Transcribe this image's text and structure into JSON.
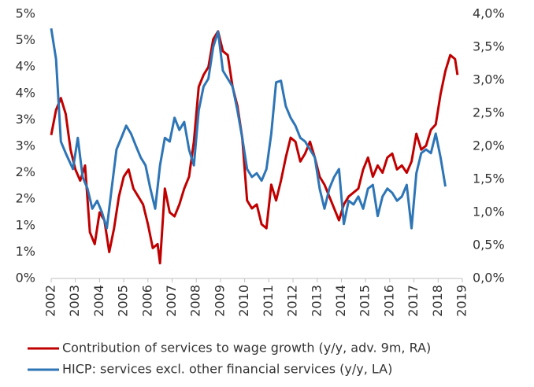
{
  "chart_data": {
    "type": "line",
    "xlim": [
      2002,
      2019
    ],
    "xticks": [
      2002,
      2003,
      2004,
      2005,
      2006,
      2007,
      2008,
      2009,
      2010,
      2011,
      2012,
      2013,
      2014,
      2015,
      2016,
      2017,
      2018,
      2019
    ],
    "ylim": [
      0,
      5
    ],
    "yticks": [
      {
        "value": 0,
        "label": "0%"
      },
      {
        "value": 0.5,
        "label": "1%"
      },
      {
        "value": 1,
        "label": "1%"
      },
      {
        "value": 1.5,
        "label": "2%"
      },
      {
        "value": 2,
        "label": "2%"
      },
      {
        "value": 2.5,
        "label": "3%"
      },
      {
        "value": 3,
        "label": "3%"
      },
      {
        "value": 3.5,
        "label": "4%"
      },
      {
        "value": 4,
        "label": "4%"
      },
      {
        "value": 4.5,
        "label": "5%"
      },
      {
        "value": 5,
        "label": "5%"
      }
    ],
    "y2lim": [
      0,
      4
    ],
    "y2ticks": [
      {
        "value": 0,
        "label": "0,0%"
      },
      {
        "value": 0.5,
        "label": "0,5%"
      },
      {
        "value": 1,
        "label": "1,0%"
      },
      {
        "value": 1.5,
        "label": "1,5%"
      },
      {
        "value": 2,
        "label": "2,0%"
      },
      {
        "value": 2.5,
        "label": "2,5%"
      },
      {
        "value": 3,
        "label": "3,0%"
      },
      {
        "value": 3.5,
        "label": "3,5%"
      },
      {
        "value": 4,
        "label": "4,0%"
      }
    ],
    "series": [
      {
        "name": "Contribution of services to wage growth (y/y, adv. 9m, RA)",
        "color": "#c00000",
        "axis": "y2",
        "x": [
          2002.0,
          2002.2,
          2002.4,
          2002.6,
          2002.8,
          2003.0,
          2003.2,
          2003.4,
          2003.6,
          2003.8,
          2004.0,
          2004.2,
          2004.4,
          2004.6,
          2004.8,
          2005.0,
          2005.2,
          2005.4,
          2005.6,
          2005.8,
          2006.0,
          2006.2,
          2006.4,
          2006.5,
          2006.7,
          2006.9,
          2007.1,
          2007.3,
          2007.5,
          2007.7,
          2007.9,
          2008.1,
          2008.3,
          2008.5,
          2008.7,
          2008.9,
          2009.1,
          2009.3,
          2009.5,
          2009.7,
          2009.9,
          2010.1,
          2010.3,
          2010.5,
          2010.7,
          2010.9,
          2011.1,
          2011.3,
          2011.5,
          2011.7,
          2011.9,
          2012.1,
          2012.3,
          2012.5,
          2012.7,
          2012.9,
          2013.1,
          2013.3,
          2013.5,
          2013.7,
          2013.9,
          2014.1,
          2014.3,
          2014.5,
          2014.7,
          2014.9,
          2015.1,
          2015.3,
          2015.5,
          2015.7,
          2015.9,
          2016.1,
          2016.3,
          2016.5,
          2016.7,
          2016.9,
          2017.1,
          2017.3,
          2017.5,
          2017.7,
          2017.9,
          2018.1,
          2018.3,
          2018.5,
          2018.7,
          2018.8
        ],
        "values": [
          2.17,
          2.55,
          2.73,
          2.49,
          1.95,
          1.65,
          1.48,
          1.71,
          0.7,
          0.52,
          1.0,
          0.88,
          0.4,
          0.76,
          1.24,
          1.54,
          1.65,
          1.36,
          1.24,
          1.12,
          0.82,
          0.46,
          0.52,
          0.23,
          1.36,
          1.0,
          0.94,
          1.12,
          1.36,
          1.54,
          2.07,
          2.9,
          3.08,
          3.2,
          3.62,
          3.74,
          3.44,
          3.38,
          2.9,
          2.61,
          2.13,
          1.18,
          1.06,
          1.12,
          0.82,
          0.76,
          1.42,
          1.18,
          1.48,
          1.83,
          2.13,
          2.07,
          1.77,
          1.89,
          2.07,
          1.83,
          1.54,
          1.42,
          1.24,
          1.06,
          0.88,
          1.12,
          1.24,
          1.3,
          1.36,
          1.65,
          1.83,
          1.54,
          1.71,
          1.6,
          1.83,
          1.89,
          1.65,
          1.71,
          1.6,
          1.77,
          2.19,
          1.95,
          2.01,
          2.25,
          2.33,
          2.79,
          3.14,
          3.38,
          3.32,
          3.08
        ]
      },
      {
        "name": "HICP: services excl. other financial services (y/y, LA)",
        "color": "#2e75b6",
        "x": [
          2002.0,
          2002.2,
          2002.4,
          2002.6,
          2002.9,
          2003.1,
          2003.3,
          2003.5,
          2003.7,
          2003.9,
          2004.1,
          2004.3,
          2004.5,
          2004.7,
          2004.9,
          2005.1,
          2005.3,
          2005.5,
          2005.7,
          2005.9,
          2006.1,
          2006.3,
          2006.5,
          2006.7,
          2006.9,
          2007.1,
          2007.3,
          2007.5,
          2007.7,
          2007.9,
          2008.1,
          2008.3,
          2008.5,
          2008.7,
          2008.9,
          2009.1,
          2009.3,
          2009.5,
          2009.7,
          2009.9,
          2010.1,
          2010.3,
          2010.5,
          2010.7,
          2010.9,
          2011.1,
          2011.3,
          2011.5,
          2011.7,
          2011.9,
          2012.1,
          2012.3,
          2012.5,
          2012.7,
          2012.9,
          2013.1,
          2013.3,
          2013.5,
          2013.7,
          2013.9,
          2014.1,
          2014.3,
          2014.5,
          2014.7,
          2014.9,
          2015.1,
          2015.3,
          2015.5,
          2015.7,
          2015.9,
          2016.1,
          2016.3,
          2016.5,
          2016.7,
          2016.9,
          2017.1,
          2017.3,
          2017.5,
          2017.7,
          2017.9,
          2018.1,
          2018.3
        ],
        "values": [
          4.73,
          4.15,
          2.59,
          2.37,
          2.07,
          2.66,
          1.92,
          1.7,
          1.32,
          1.47,
          1.25,
          0.95,
          1.7,
          2.44,
          2.66,
          2.89,
          2.74,
          2.51,
          2.29,
          2.14,
          1.7,
          1.32,
          2.14,
          2.66,
          2.59,
          3.04,
          2.81,
          2.96,
          2.44,
          2.14,
          3.18,
          3.63,
          3.78,
          4.38,
          4.67,
          3.93,
          3.78,
          3.63,
          3.18,
          2.66,
          2.07,
          1.92,
          1.99,
          1.85,
          2.07,
          2.74,
          3.71,
          3.74,
          3.26,
          3.04,
          2.89,
          2.66,
          2.59,
          2.44,
          2.29,
          1.7,
          1.32,
          1.7,
          1.92,
          2.07,
          1.03,
          1.47,
          1.4,
          1.55,
          1.32,
          1.7,
          1.77,
          1.18,
          1.55,
          1.7,
          1.62,
          1.47,
          1.55,
          1.77,
          0.95,
          1.99,
          2.37,
          2.44,
          2.37,
          2.74,
          2.29,
          1.74
        ]
      }
    ]
  }
}
